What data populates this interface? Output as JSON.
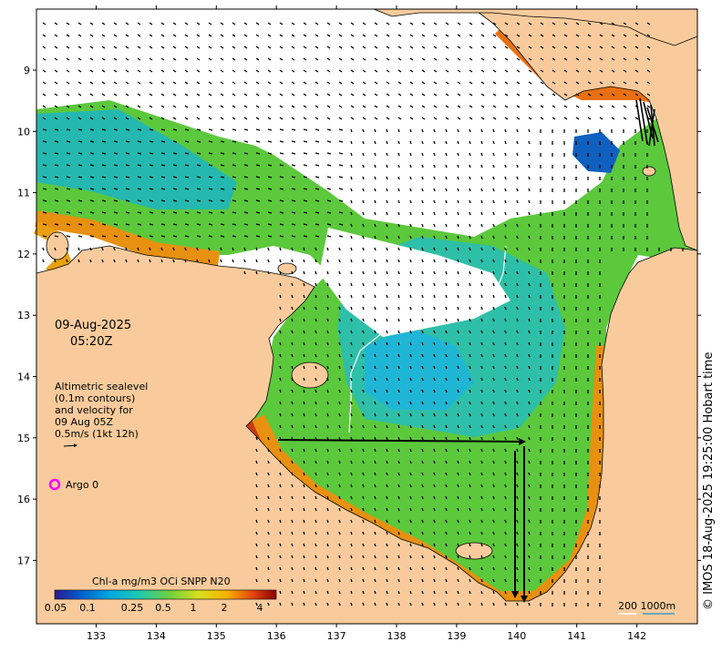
{
  "map": {
    "date_label": "09-Aug-2025",
    "time_label": "05:20Z",
    "legend_text_lines": [
      "Altimetric sealevel",
      "(0.1m contours)",
      "and velocity for",
      "09 Aug 05Z",
      "0.5m/s (1kt 12h)"
    ],
    "argo_label": "Argo 0",
    "colorbar_title": "Chl-a mg/m3 OCi SNPP N20",
    "colorbar_ticks": [
      "0.05",
      "0.1",
      "0.25",
      "0.5",
      "1",
      "2",
      "4"
    ],
    "scale_label": "200  1000m",
    "credit": "© IMOS 18-Aug-2025 19:25:00 Hobart time",
    "lat_ticks": [
      "9",
      "10",
      "11",
      "12",
      "13",
      "14",
      "15",
      "16",
      "17"
    ],
    "lon_ticks": [
      "133",
      "134",
      "135",
      "136",
      "137",
      "138",
      "139",
      "140",
      "141",
      "142"
    ],
    "colors": {
      "land": "#f9cb9c",
      "water_nodata": "#ffffff",
      "argo_marker": "#ff00ff",
      "colorbar": [
        "#2b1a8f",
        "#0060d0",
        "#00a8e0",
        "#20c8b0",
        "#70d040",
        "#d8e020",
        "#f8b000",
        "#e04010",
        "#8b0000"
      ]
    }
  }
}
